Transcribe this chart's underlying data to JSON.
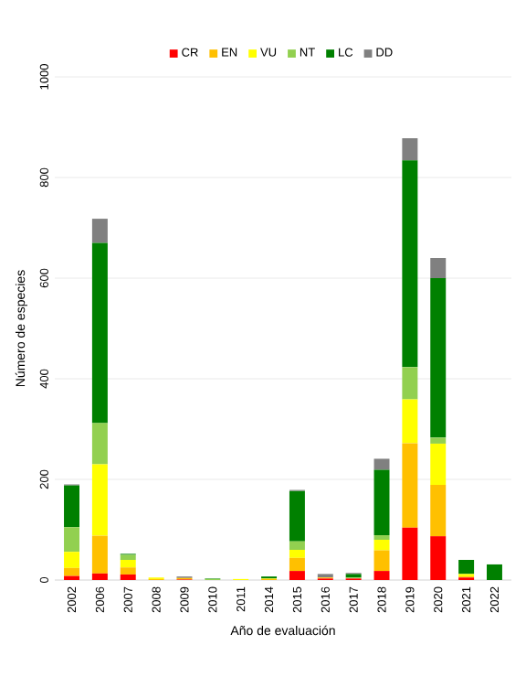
{
  "chart_data": {
    "type": "bar",
    "stacked": true,
    "xlabel": "Año de evaluación",
    "ylabel": "Número de especies",
    "categories": [
      "2002",
      "2006",
      "2007",
      "2008",
      "2009",
      "2010",
      "2011",
      "2014",
      "2015",
      "2016",
      "2017",
      "2018",
      "2019",
      "2020",
      "2021",
      "2022"
    ],
    "series": [
      {
        "name": "CR",
        "color": "#ff0000",
        "values": [
          8,
          13,
          11,
          0,
          1,
          0,
          0,
          0,
          18,
          3,
          3,
          18,
          104,
          87,
          5,
          0
        ]
      },
      {
        "name": "EN",
        "color": "#ffc000",
        "values": [
          16,
          75,
          14,
          2,
          3,
          0,
          0,
          2,
          26,
          2,
          0,
          41,
          168,
          102,
          2,
          0
        ]
      },
      {
        "name": "VU",
        "color": "#ffff00",
        "values": [
          32,
          142,
          15,
          3,
          0,
          0,
          2,
          1,
          16,
          0,
          0,
          21,
          87,
          82,
          5,
          0
        ]
      },
      {
        "name": "NT",
        "color": "#92d050",
        "values": [
          49,
          82,
          10,
          0,
          0,
          2,
          0,
          0,
          17,
          0,
          2,
          9,
          64,
          12,
          0,
          0
        ]
      },
      {
        "name": "LC",
        "color": "#008000",
        "values": [
          83,
          358,
          2,
          0,
          0,
          1,
          0,
          4,
          100,
          0,
          7,
          130,
          411,
          317,
          28,
          31
        ]
      },
      {
        "name": "DD",
        "color": "#808080",
        "values": [
          2,
          48,
          0,
          0,
          3,
          0,
          0,
          0,
          2,
          7,
          2,
          22,
          44,
          40,
          0,
          0
        ]
      }
    ],
    "ylim": [
      0,
      1000
    ],
    "yticks": [
      0,
      200,
      400,
      600,
      800,
      1000
    ],
    "grid": "y",
    "legend": "top"
  }
}
